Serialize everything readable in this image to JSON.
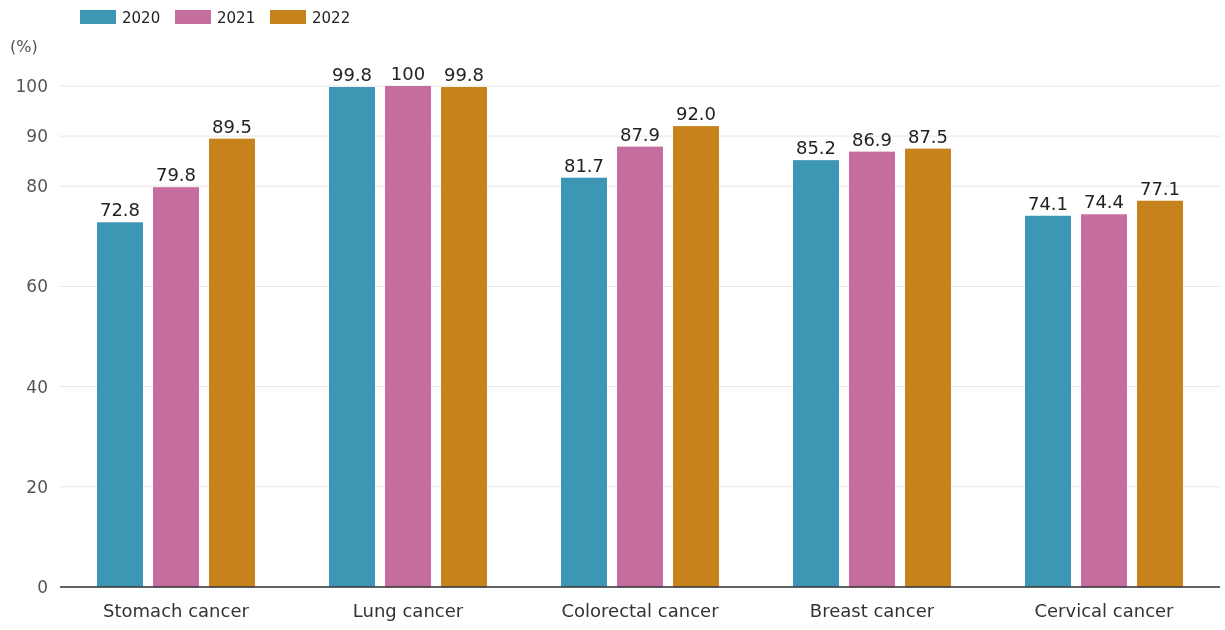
{
  "chart_data": {
    "type": "bar",
    "ylabel": "(%)",
    "categories": [
      "Stomach cancer",
      "Lung cancer",
      "Colorectal cancer",
      "Breast cancer",
      "Cervical cancer"
    ],
    "series": [
      {
        "name": "2020",
        "color": "#3d96b4",
        "values": [
          72.8,
          99.8,
          81.7,
          85.2,
          74.1
        ],
        "value_labels": [
          "72.8",
          "99.8",
          "81.7",
          "85.2",
          "74.1"
        ]
      },
      {
        "name": "2021",
        "color": "#c46d9e",
        "values": [
          79.8,
          100,
          87.9,
          86.9,
          74.4
        ],
        "value_labels": [
          "79.8",
          "100",
          "87.9",
          "86.9",
          "74.4"
        ]
      },
      {
        "name": "2022",
        "color": "#c8821c",
        "values": [
          89.5,
          99.8,
          92.0,
          87.5,
          77.1
        ],
        "value_labels": [
          "89.5",
          "99.8",
          "92.0",
          "87.5",
          "77.1"
        ]
      }
    ],
    "ylim": [
      0,
      100
    ],
    "yticks": [
      0,
      20,
      40,
      60,
      80,
      90,
      100
    ],
    "grid": "y",
    "legend": "top left"
  }
}
